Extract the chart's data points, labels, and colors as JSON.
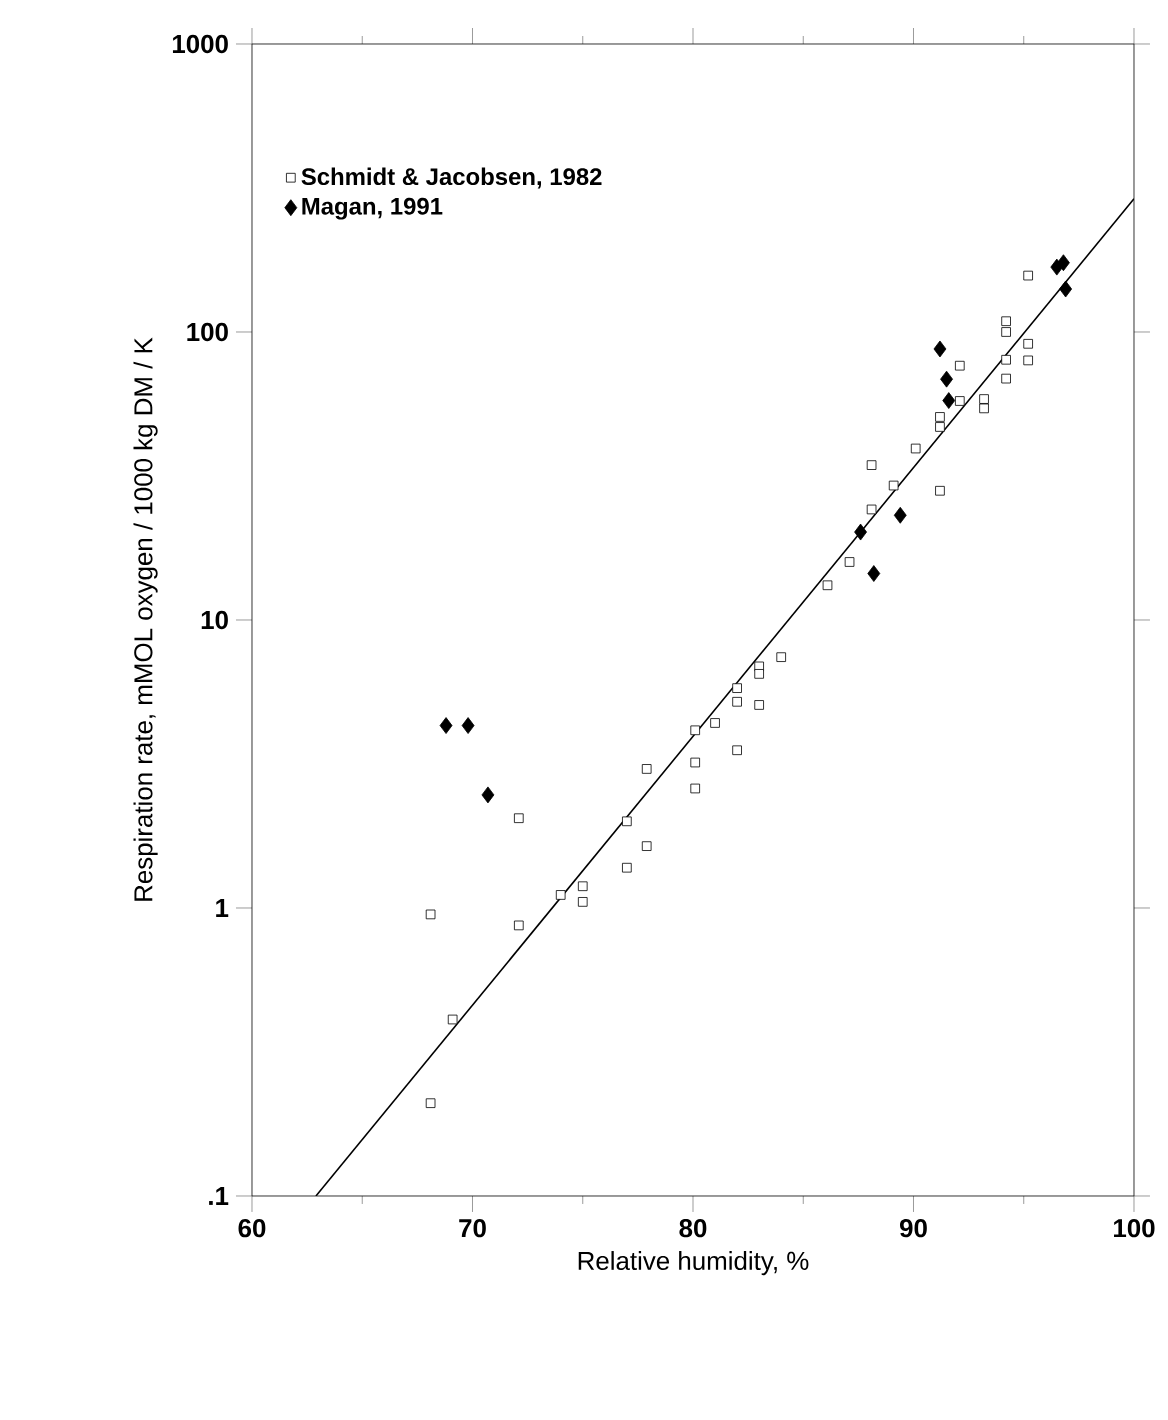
{
  "chart_data": {
    "type": "scatter",
    "xlabel": "Relative humidity, %",
    "ylabel": "Respiration rate, mMOL oxygen / 1000 kg DM / K",
    "xlim": [
      60,
      100
    ],
    "xticks": [
      60,
      70,
      80,
      90,
      100
    ],
    "ylim": [
      0.1,
      1000
    ],
    "yticks": [
      {
        "value": 0.1,
        "label": ".1"
      },
      1,
      10,
      100,
      1000
    ],
    "log": "y",
    "grid": false,
    "legend": "top left",
    "series": [
      {
        "name": "Schmidt & Jacobsen, 1982",
        "color": "#000000",
        "marker": "square",
        "x": [
          72.1,
          68.1,
          72.1,
          69.1,
          68.1,
          74.0,
          75.0,
          75.0,
          77.0,
          77.0,
          77.9,
          77.9,
          80.1,
          80.1,
          80.1,
          81.0,
          82.0,
          82.0,
          82.0,
          83.0,
          83.0,
          83.0,
          84.0,
          86.1,
          87.1,
          88.1,
          89.1,
          88.1,
          90.1,
          91.2,
          91.2,
          91.2,
          92.1,
          92.1,
          93.2,
          93.2,
          94.2,
          94.2,
          94.2,
          94.2,
          95.2,
          95.2,
          95.2
        ],
        "values": [
          2.05,
          0.95,
          0.87,
          0.41,
          0.21,
          1.11,
          1.19,
          1.05,
          2.0,
          1.38,
          1.64,
          3.04,
          4.14,
          3.2,
          2.6,
          4.39,
          5.8,
          5.2,
          3.53,
          6.9,
          6.5,
          5.07,
          7.43,
          13.2,
          15.9,
          34.5,
          29.3,
          24.2,
          39.4,
          28.1,
          46.8,
          50.7,
          57.6,
          76.4,
          58.5,
          54.3,
          68.9,
          80.1,
          100,
          109,
          79.7,
          91,
          157
        ]
      },
      {
        "name": "Magan, 1991",
        "color": "#000000",
        "marker": "diamond",
        "x": [
          68.8,
          69.8,
          70.7,
          87.6,
          88.2,
          89.4,
          91.2,
          91.5,
          91.6,
          96.5,
          96.8,
          96.9
        ],
        "values": [
          4.3,
          4.3,
          2.47,
          20.2,
          14.5,
          23.1,
          87.3,
          68.6,
          57.8,
          168,
          174,
          141
        ]
      },
      {
        "type": "line",
        "color": "#000000",
        "marker": "none",
        "x": [
          62.9,
          100
        ],
        "values": [
          0.1,
          290
        ]
      }
    ]
  }
}
